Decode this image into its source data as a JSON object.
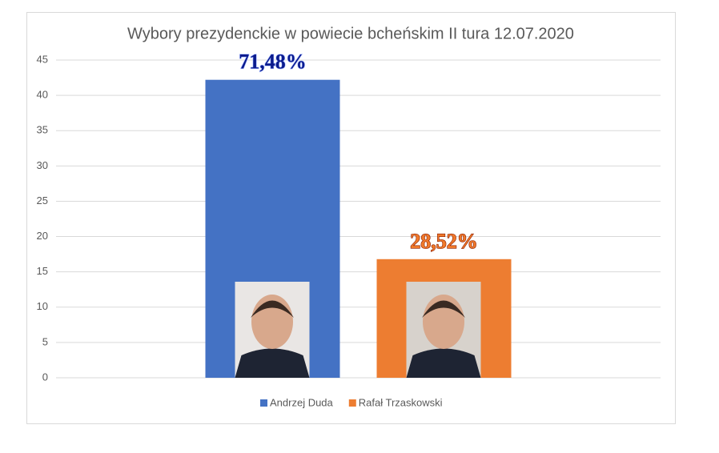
{
  "chart_data": {
    "type": "bar",
    "title": "Wybory prezydenckie w powiecie bcheńskim II tura 12.07.2020",
    "categories": [
      null
    ],
    "series": [
      {
        "name": "Andrzej Duda",
        "color": "#4472c4",
        "values": [
          42.2
        ]
      },
      {
        "name": "Rafał Trzaskowski",
        "color": "#ed7d31",
        "values": [
          16.8
        ]
      }
    ],
    "annotations": [
      "71,48%",
      "28,52%"
    ],
    "ylim": [
      0,
      45
    ],
    "yticks": [
      0,
      5,
      10,
      15,
      20,
      25,
      30,
      35,
      40,
      45
    ],
    "grid": true,
    "legend": "bottom"
  }
}
